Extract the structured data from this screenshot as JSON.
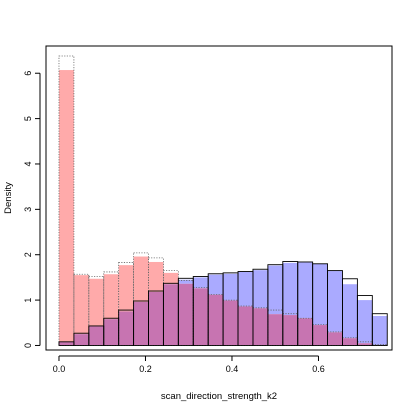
{
  "chart_data": {
    "type": "bar",
    "subtype": "overlaid-histograms",
    "title": "",
    "xlabel": "scan_direction_strength_k2",
    "ylabel": "Density",
    "xlim": [
      -0.03,
      0.77
    ],
    "ylim": [
      -0.1,
      6.6
    ],
    "xticks": [
      0.0,
      0.2,
      0.4,
      0.6
    ],
    "xtick_labels": [
      "0.0",
      "0.2",
      "0.4",
      "0.6"
    ],
    "yticks": [
      0,
      1,
      2,
      3,
      4,
      5,
      6
    ],
    "ytick_labels": [
      "0",
      "1",
      "2",
      "3",
      "4",
      "5",
      "6"
    ],
    "grid": false,
    "legend": "none",
    "bin_width": 0.0345,
    "bin_starts": [
      0.0,
      0.0345,
      0.069,
      0.1035,
      0.138,
      0.1725,
      0.207,
      0.2415,
      0.276,
      0.3105,
      0.345,
      0.3795,
      0.414,
      0.4485,
      0.483,
      0.5175,
      0.552,
      0.5865,
      0.621,
      0.6555,
      0.69,
      0.7245
    ],
    "series": [
      {
        "fill": "#aaaaff",
        "stroke": "#000000",
        "stroke_style": "solid",
        "outline_values": [
          0.08,
          0.27,
          0.43,
          0.6,
          0.78,
          0.98,
          1.2,
          1.37,
          1.48,
          1.52,
          1.58,
          1.6,
          1.63,
          1.68,
          1.78,
          1.85,
          1.84,
          1.8,
          1.65,
          1.47,
          1.1,
          0.7
        ],
        "filled_values": [
          0.08,
          0.25,
          0.42,
          0.58,
          0.75,
          0.96,
          1.18,
          1.35,
          1.45,
          1.5,
          1.56,
          1.58,
          1.62,
          1.66,
          1.76,
          1.82,
          1.83,
          1.8,
          1.64,
          1.35,
          1.0,
          0.65
        ]
      },
      {
        "fill": "#ffaaaa",
        "stroke": "#666666",
        "stroke_style": "dotted",
        "outline_values": [
          6.38,
          1.57,
          1.52,
          1.62,
          1.83,
          2.04,
          1.93,
          1.65,
          1.43,
          1.28,
          1.12,
          1.0,
          0.87,
          0.83,
          0.78,
          0.7,
          0.6,
          0.46,
          0.3,
          0.17,
          0.08,
          0.02
        ],
        "filled_values": [
          6.07,
          1.55,
          1.47,
          1.57,
          1.77,
          1.96,
          1.84,
          1.6,
          1.36,
          1.26,
          1.12,
          0.99,
          0.86,
          0.82,
          0.69,
          0.67,
          0.6,
          0.45,
          0.29,
          0.16,
          0.05,
          0.01
        ]
      }
    ],
    "overlap_color": "#c774b1"
  }
}
